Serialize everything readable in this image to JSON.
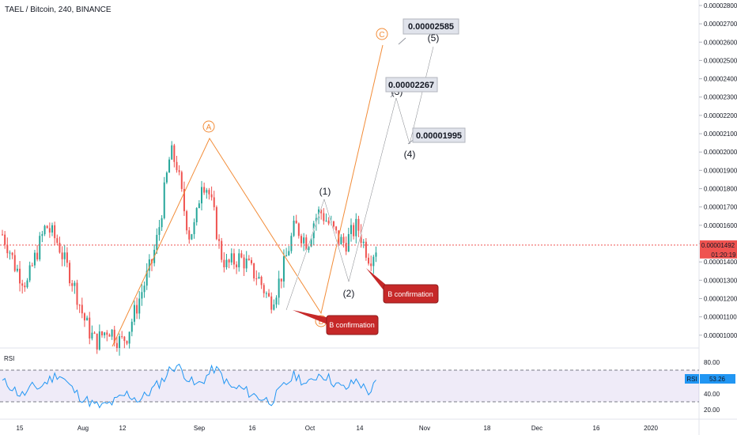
{
  "header": {
    "title": "TAEL / Bitcoin, 240, BINANCE"
  },
  "colors": {
    "up": "#26a69a",
    "down": "#ef5350",
    "elliott": "#f28c38",
    "wave": "#ffffff",
    "price_line": "#ef5350",
    "rsi": "#2196f3",
    "rsi_band": "#7e57c2",
    "callout": "#c62828"
  },
  "chart_data": {
    "type": "candlestick",
    "price_axis": {
      "ticks": [
        "0.00002800",
        "0.00002700",
        "0.00002600",
        "0.00002500",
        "0.00002400",
        "0.00002300",
        "0.00002200",
        "0.00002100",
        "0.00002000",
        "0.00001900",
        "0.00001800",
        "0.00001700",
        "0.00001600",
        "0.00001500",
        "0.00001400",
        "0.00001300",
        "0.00001200",
        "0.00001100",
        "0.00001000"
      ],
      "ylim": [
        9.3e-06,
        2.83e-05
      ]
    },
    "last_price": {
      "value": "0.00001492",
      "countdown": "01:20:19"
    },
    "time_axis": {
      "ticks": [
        "15",
        "Aug",
        "12",
        "Sep",
        "16",
        "Oct",
        "14",
        "Nov",
        "18",
        "Dec",
        "16",
        "2020"
      ]
    },
    "ohlc_path": [
      1.55e-05,
      1.48e-05,
      1.38e-05,
      1.32e-05,
      1.28e-05,
      1.4e-05,
      1.5e-05,
      1.6e-05,
      1.55e-05,
      1.5e-05,
      1.4e-05,
      1.32e-05,
      1.22e-05,
      1.1e-05,
      1.02e-05,
      9.6e-06,
      1e-05,
      1.04e-05,
      1e-05,
      9.6e-06,
      1e-05,
      1.1e-05,
      1.2e-05,
      1.3e-05,
      1.4e-05,
      1.55e-05,
      1.78e-05,
      2e-05,
      1.93e-05,
      1.72e-05,
      1.55e-05,
      1.6e-05,
      1.85e-05,
      1.8e-05,
      1.65e-05,
      1.45e-05,
      1.38e-05,
      1.4e-05,
      1.42e-05,
      1.4e-05,
      1.35e-05,
      1.32e-05,
      1.25e-05,
      1.18e-05,
      1.25e-05,
      1.35e-05,
      1.48e-05,
      1.6e-05,
      1.55e-05,
      1.5e-05,
      1.62e-05,
      1.68e-05,
      1.63e-05,
      1.58e-05,
      1.52e-05,
      1.5e-05,
      1.55e-05,
      1.6e-05,
      1.5e-05,
      1.42e-05,
      1.48e-05
    ],
    "wave_labels": {
      "A": "A",
      "B": "B",
      "C": "C",
      "w1": "(1)",
      "w2": "(2)",
      "w3": "(3)",
      "w4": "(4)",
      "w5": "(5)"
    },
    "targets": [
      {
        "label": "0.00002585",
        "value": 2.585e-05
      },
      {
        "label": "0.00002267",
        "value": 2.267e-05
      },
      {
        "label": "0.00001995",
        "value": 1.995e-05
      }
    ],
    "callouts": [
      "B confirmation",
      "B confirmation"
    ],
    "rsi": {
      "title": "RSI",
      "value": "53.26",
      "ticks": [
        "80.00",
        "60.00",
        "40.00",
        "20.00"
      ],
      "upper": 70,
      "lower": 30,
      "path": [
        55,
        52,
        45,
        38,
        42,
        50,
        48,
        55,
        60,
        66,
        58,
        48,
        40,
        34,
        30,
        25,
        24,
        27,
        30,
        35,
        40,
        36,
        32,
        38,
        45,
        52,
        60,
        72,
        76,
        68,
        58,
        50,
        55,
        64,
        72,
        66,
        54,
        46,
        48,
        44,
        40,
        36,
        34,
        30,
        38,
        48,
        56,
        64,
        58,
        50,
        60,
        66,
        62,
        56,
        50,
        46,
        52,
        58,
        48,
        42,
        53
      ]
    }
  }
}
